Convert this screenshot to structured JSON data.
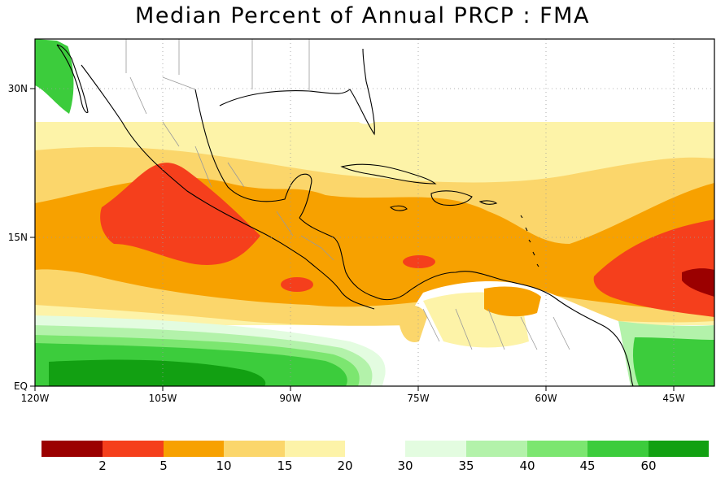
{
  "title": "Median Percent of Annual PRCP  :  FMA",
  "axes": {
    "x_ticks": [
      "120W",
      "105W",
      "90W",
      "75W",
      "60W",
      "45W"
    ],
    "y_ticks": [
      "30N",
      "15N",
      "EQ"
    ]
  },
  "colorbar": {
    "labels_left": [
      "2",
      "5",
      "10",
      "15",
      "20"
    ],
    "labels_right": [
      "30",
      "35",
      "40",
      "45",
      "60"
    ],
    "colors_left": [
      "#9b0000",
      "#f53f1c",
      "#f7a100",
      "#fbd66b",
      "#fdf3a8"
    ],
    "colors_right": [
      "#e3fce0",
      "#b3f2aa",
      "#7ce670",
      "#3ccc3c",
      "#12a012"
    ]
  }
}
